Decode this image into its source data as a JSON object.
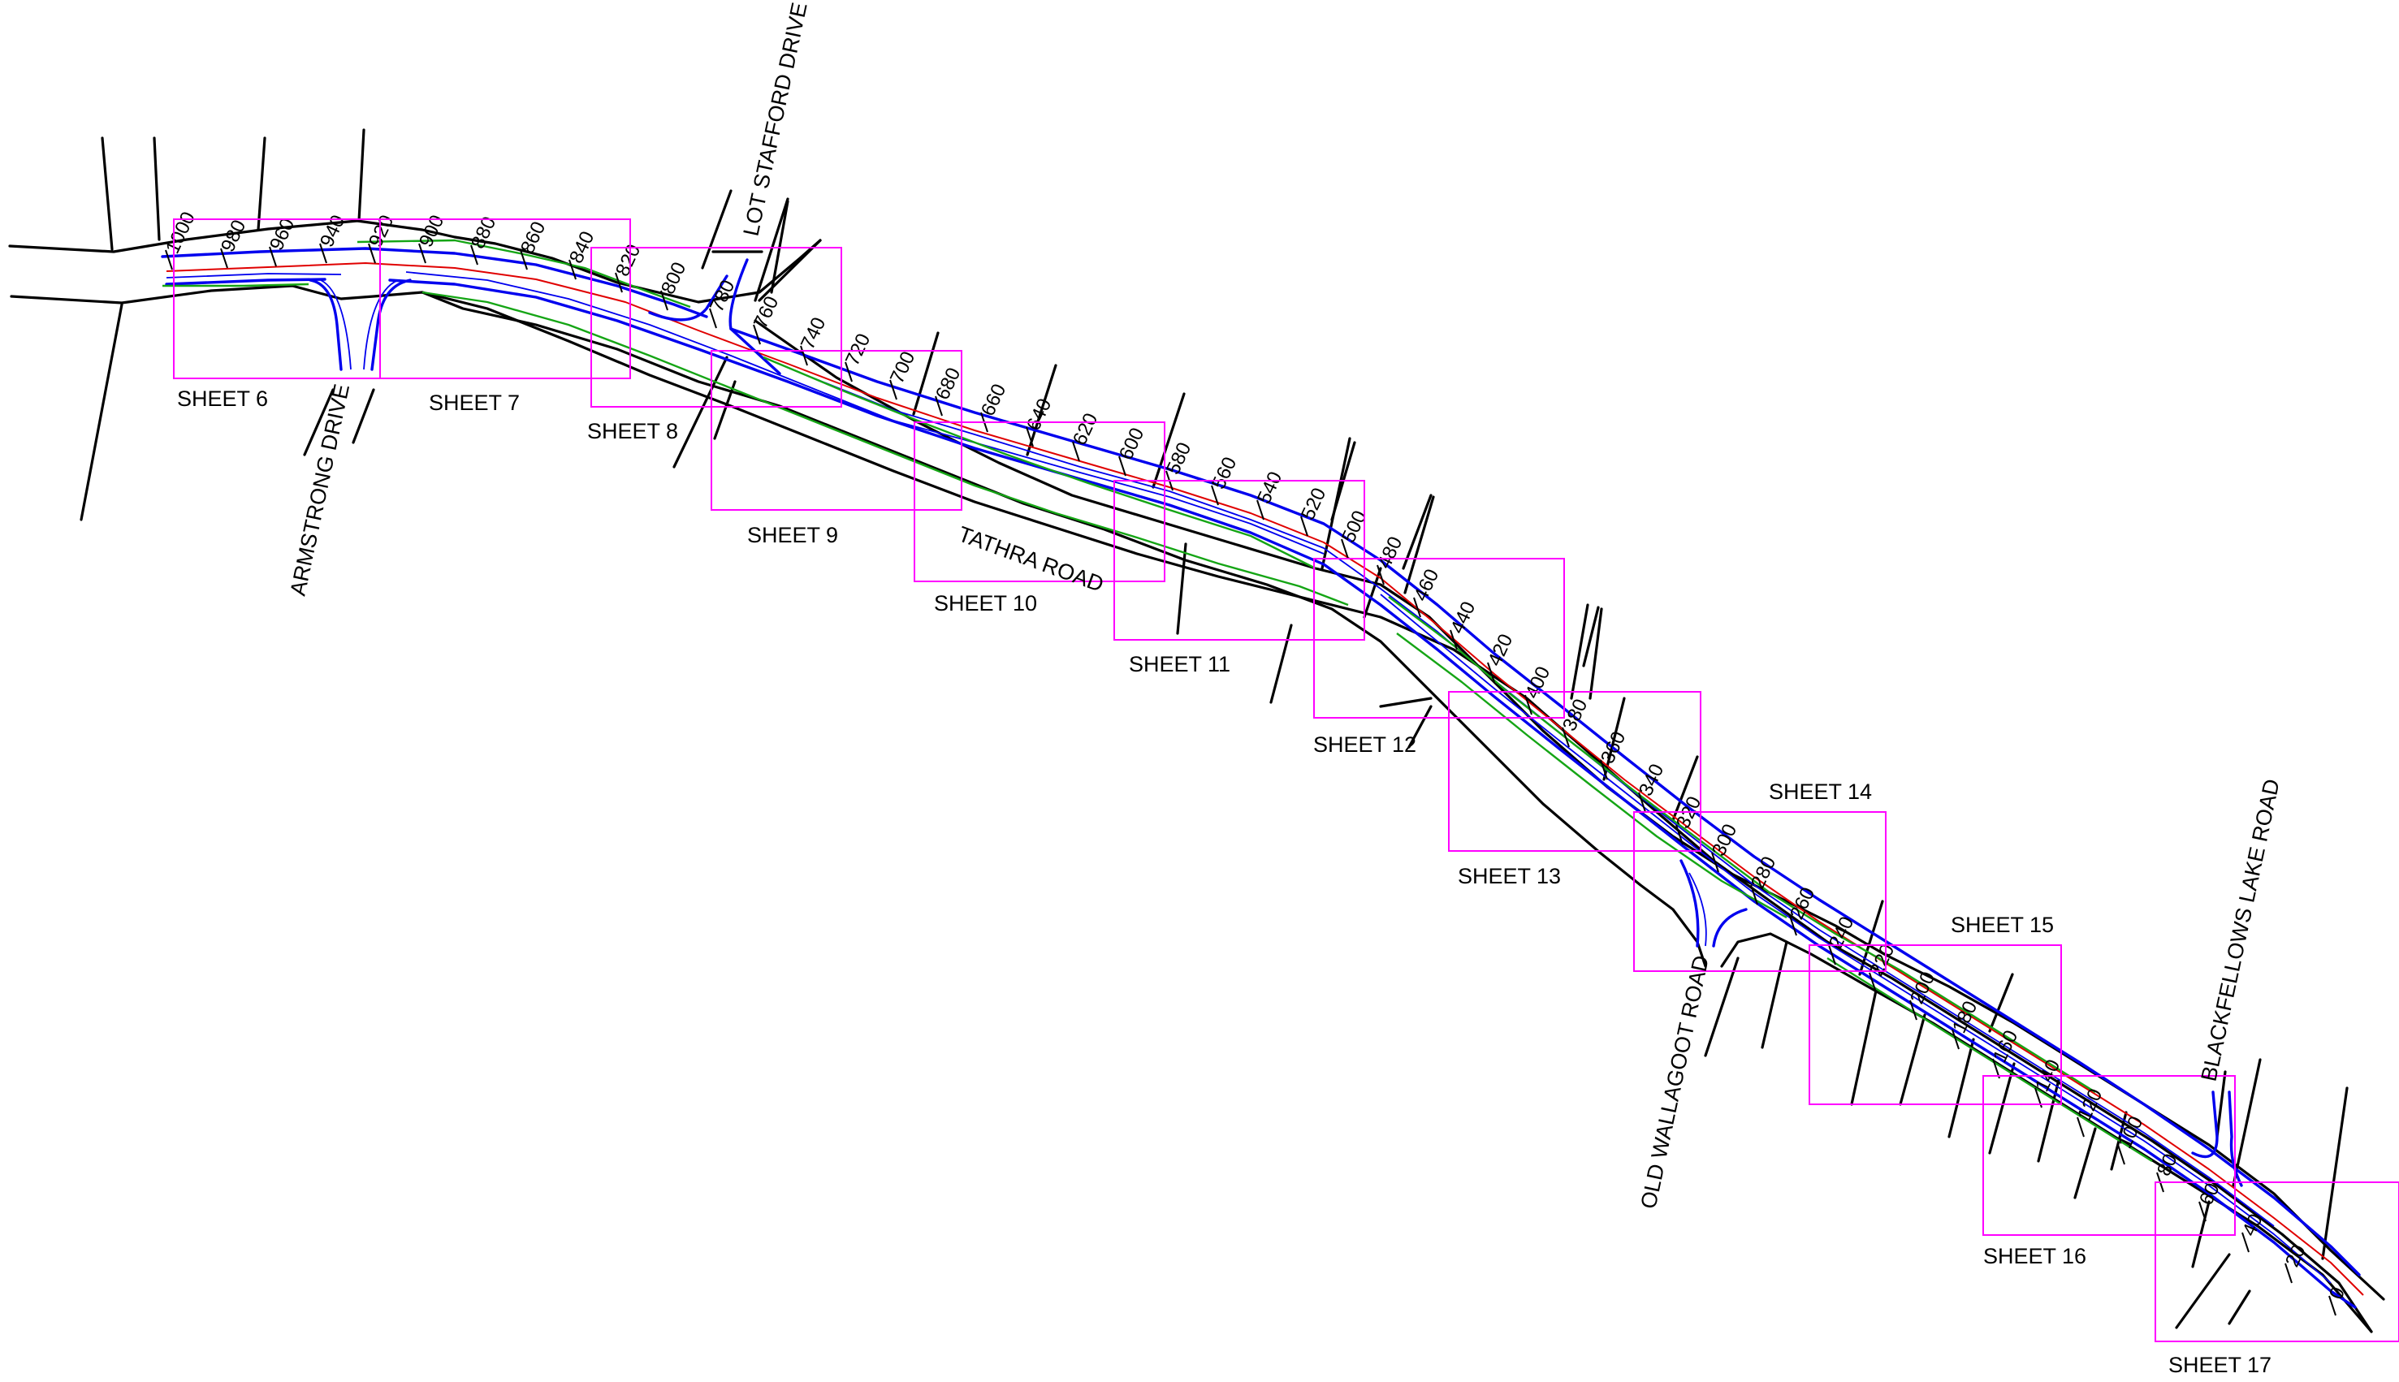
{
  "road_name": "TATHRA ROAD",
  "cross_roads": {
    "armstrong": "ARMSTRONG DRIVE",
    "lot_stafford": "LOT STAFFORD DRIVE",
    "old_wallagoot": "OLD WALLAGOOT ROAD",
    "blackfellows": "BLACKFELLOWS LAKE ROAD"
  },
  "sheets": [
    "SHEET 6",
    "SHEET 7",
    "SHEET 8",
    "SHEET 9",
    "SHEET 10",
    "SHEET 11",
    "SHEET 12",
    "SHEET 13",
    "SHEET 14",
    "SHEET 15",
    "SHEET 16",
    "SHEET 17"
  ],
  "chainages": [
    "1000",
    "980",
    "960",
    "940",
    "920",
    "900",
    "880",
    "860",
    "840",
    "820",
    "800",
    "780",
    "760",
    "740",
    "720",
    "700",
    "680",
    "660",
    "640",
    "620",
    "600",
    "580",
    "560",
    "540",
    "520",
    "500",
    "480",
    "460",
    "440",
    "420",
    "400",
    "380",
    "360",
    "340",
    "320",
    "300",
    "280",
    "260",
    "240",
    "220",
    "200",
    "180",
    "160",
    "140",
    "120",
    "100",
    "80",
    "60",
    "40",
    "20",
    "0"
  ],
  "colors": {
    "boundary": "#000000",
    "kerb": "#0000ee",
    "batter": "#15a515",
    "control_line": "#e00000",
    "sheet_frame": "#ff00ff"
  }
}
